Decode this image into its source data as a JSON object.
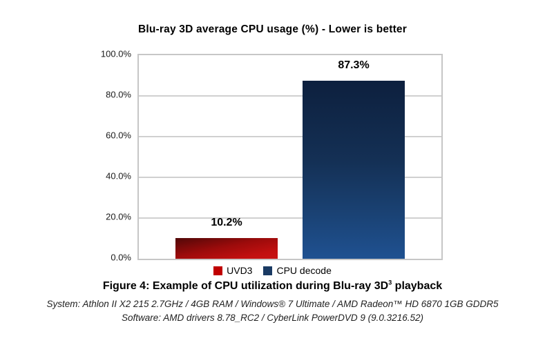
{
  "chart_data": {
    "type": "bar",
    "title": "Blu-ray 3D average CPU usage (%) - Lower is better",
    "categories": [
      "UVD3",
      "CPU decode"
    ],
    "series": [
      {
        "name": "UVD3",
        "value": 10.2,
        "label": "10.2%",
        "color": "#c00000"
      },
      {
        "name": "CPU decode",
        "value": 87.3,
        "label": "87.3%",
        "color": "#1a3a63"
      }
    ],
    "ylabel": "",
    "xlabel": "",
    "ylim": [
      0,
      100
    ],
    "yticks": [
      0,
      20,
      40,
      60,
      80,
      100
    ],
    "ytick_labels": [
      "0.0%",
      "20.0%",
      "40.0%",
      "60.0%",
      "80.0%",
      "100.0%"
    ],
    "grid": true,
    "legend_position": "bottom"
  },
  "caption": {
    "prefix": "Figure 4: Example of CPU utilization during Blu-ray 3D",
    "superscript": "3",
    "suffix": " playback",
    "system_line": "System: Athlon II X2 215 2.7GHz / 4GB RAM / Windows® 7 Ultimate / AMD Radeon™ HD 6870 1GB GDDR5",
    "software_line": "Software: AMD drivers 8.78_RC2 / CyberLink PowerDVD 9 (9.0.3216.52)"
  },
  "colors": {
    "bar_red": "#c00000",
    "bar_blue": "#1a3a63",
    "grid": "#d0d0d0",
    "plot_border": "#c6c6c6"
  }
}
